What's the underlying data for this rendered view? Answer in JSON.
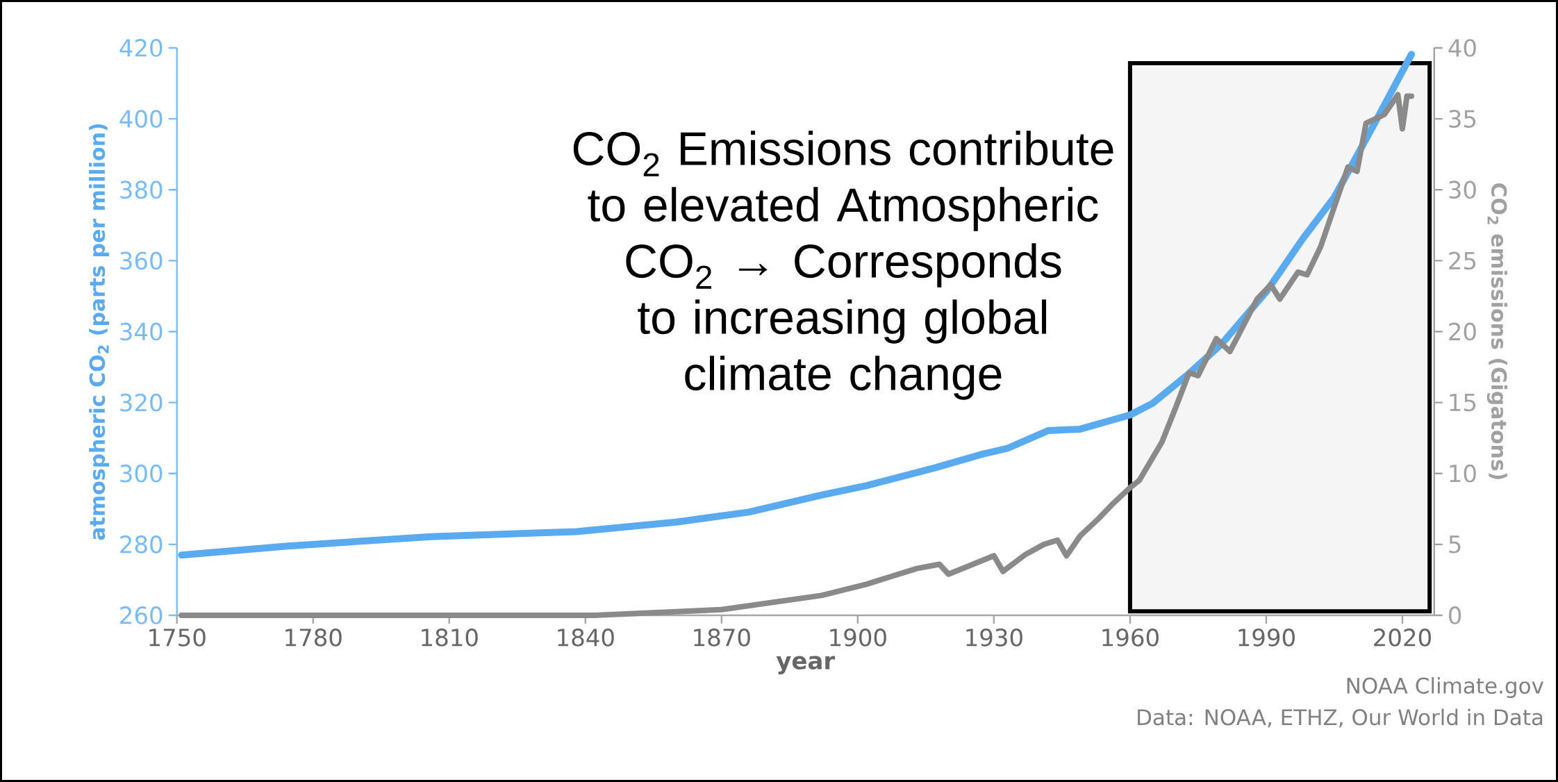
{
  "chart_data": {
    "type": "line",
    "xlabel": "year",
    "ylabel": "atmospheric CO$_{2}$ (parts per million)",
    "y2label": "CO$_{2}$ emissions (Gigatons)",
    "annotations": [
      "CO$_{2}$ Emissions contribute to elevated Atmospheric CO$_{2}$ → Corresponds to increasing global climate change",
      "NOAA Climate.gov",
      "Data: NOAA, ETHZ, Our World in Data"
    ],
    "xlim": [
      1750,
      2027
    ],
    "xticks": [
      1750,
      1780,
      1810,
      1840,
      1870,
      1900,
      1930,
      1960,
      1990,
      2020
    ],
    "ylim": [
      260,
      420
    ],
    "yticks": [
      260,
      280,
      300,
      320,
      340,
      360,
      380,
      400,
      420
    ],
    "y2lim": [
      0,
      40
    ],
    "y2ticks": [
      0,
      5,
      10,
      15,
      20,
      25,
      30,
      35,
      40
    ],
    "series": [
      {
        "color": "#5aaaf0",
        "x": [
          1751,
          1774,
          1806,
          1838,
          1860,
          1876,
          1892,
          1902,
          1917,
          1927,
          1933,
          1942,
          1949,
          1960,
          1965,
          1973,
          1980,
          1990,
          1998,
          2005,
          2014,
          2022
        ],
        "values": [
          277.0,
          279.5,
          282.2,
          283.6,
          286.3,
          289.1,
          293.9,
          296.6,
          301.6,
          305.3,
          307.1,
          312.1,
          312.5,
          316.5,
          319.8,
          328.2,
          336.3,
          351.2,
          366.1,
          377.9,
          399.0,
          418.2
        ]
      },
      {
        "color": "#8a8a8a",
        "axis": "y2",
        "x": [
          1751,
          1842,
          1870,
          1892,
          1902,
          1913,
          1918,
          1920,
          1930,
          1932,
          1937,
          1941,
          1944,
          1946,
          1949,
          1953,
          1956,
          1960,
          1962,
          1967,
          1970,
          1973,
          1975,
          1979,
          1982,
          1988,
          1991,
          1993,
          1997,
          1999,
          2002,
          2008,
          2010,
          2012,
          2016,
          2019,
          2020,
          2021,
          2022
        ],
        "values": [
          0.0,
          0.0,
          0.4,
          1.4,
          2.2,
          3.3,
          3.6,
          2.9,
          4.2,
          3.1,
          4.3,
          5.0,
          5.3,
          4.2,
          5.6,
          6.8,
          7.8,
          9.0,
          9.5,
          12.2,
          14.6,
          17.1,
          16.9,
          19.5,
          18.6,
          22.3,
          23.3,
          22.3,
          24.2,
          24.0,
          26.0,
          31.6,
          31.3,
          34.7,
          35.3,
          36.7,
          34.3,
          36.6,
          36.6
        ]
      }
    ],
    "bands": [
      {
        "axis": "x",
        "from": 1960,
        "to": 2026,
        "color": "#000000"
      }
    ]
  }
}
